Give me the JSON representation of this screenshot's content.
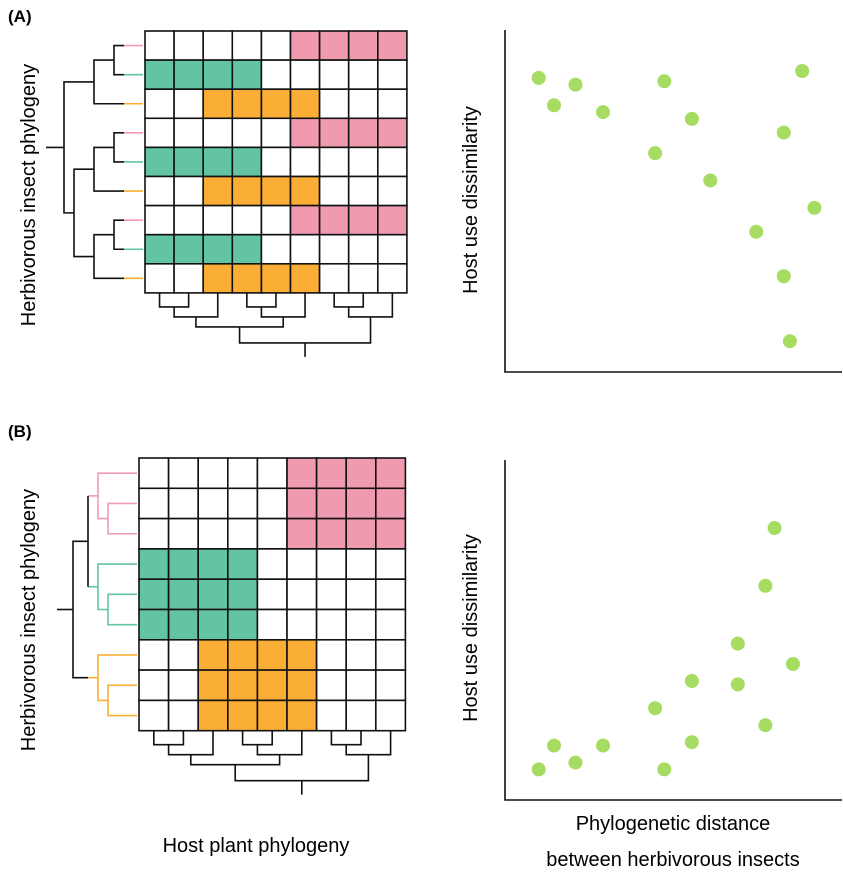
{
  "colors": {
    "pink": "#f09ab0",
    "green": "#62c4a5",
    "orange": "#fbae36",
    "point": "#a6dc61",
    "line": "#111111",
    "grid_empty": "#ffffff"
  },
  "panels": [
    {
      "label": "(A)",
      "insect_axis_label": "Herbivorous insect phylogeny",
      "row_colors": [
        "pink",
        "green",
        "orange",
        "pink",
        "green",
        "orange",
        "pink",
        "green",
        "orange"
      ],
      "matrix": [
        [
          0,
          0,
          0,
          0,
          0,
          1,
          1,
          1,
          1
        ],
        [
          2,
          2,
          2,
          2,
          0,
          0,
          0,
          0,
          0
        ],
        [
          0,
          0,
          3,
          3,
          3,
          3,
          0,
          0,
          0
        ],
        [
          0,
          0,
          0,
          0,
          0,
          1,
          1,
          1,
          1
        ],
        [
          2,
          2,
          2,
          2,
          0,
          0,
          0,
          0,
          0
        ],
        [
          0,
          0,
          3,
          3,
          3,
          3,
          0,
          0,
          0
        ],
        [
          0,
          0,
          0,
          0,
          0,
          1,
          1,
          1,
          1
        ],
        [
          2,
          2,
          2,
          2,
          0,
          0,
          0,
          0,
          0
        ],
        [
          0,
          0,
          3,
          3,
          3,
          3,
          0,
          0,
          0
        ]
      ],
      "scatter": {
        "y_label": "Host use dissimilarity",
        "x_label_line1": "",
        "x_label_line2": "",
        "points": [
          {
            "x": 1.1,
            "y": 8.6
          },
          {
            "x": 1.6,
            "y": 7.8
          },
          {
            "x": 2.3,
            "y": 8.4
          },
          {
            "x": 3.2,
            "y": 7.6
          },
          {
            "x": 4.9,
            "y": 6.4
          },
          {
            "x": 5.2,
            "y": 8.5
          },
          {
            "x": 6.1,
            "y": 7.4
          },
          {
            "x": 6.7,
            "y": 5.6
          },
          {
            "x": 8.2,
            "y": 4.1
          },
          {
            "x": 9.1,
            "y": 7.0
          },
          {
            "x": 9.1,
            "y": 2.8
          },
          {
            "x": 9.7,
            "y": 8.8
          },
          {
            "x": 10.1,
            "y": 4.8
          },
          {
            "x": 9.3,
            "y": 0.9
          }
        ]
      }
    },
    {
      "label": "(B)",
      "insect_axis_label": "Herbivorous insect phylogeny",
      "plant_axis_label": "Host plant phylogeny",
      "row_colors": [
        "pink",
        "pink",
        "pink",
        "green",
        "green",
        "green",
        "orange",
        "orange",
        "orange"
      ],
      "matrix": [
        [
          0,
          0,
          0,
          0,
          0,
          1,
          1,
          1,
          1
        ],
        [
          0,
          0,
          0,
          0,
          0,
          1,
          1,
          1,
          1
        ],
        [
          0,
          0,
          0,
          0,
          0,
          1,
          1,
          1,
          1
        ],
        [
          2,
          2,
          2,
          2,
          0,
          0,
          0,
          0,
          0
        ],
        [
          2,
          2,
          2,
          2,
          0,
          0,
          0,
          0,
          0
        ],
        [
          2,
          2,
          2,
          2,
          0,
          0,
          0,
          0,
          0
        ],
        [
          0,
          0,
          3,
          3,
          3,
          3,
          0,
          0,
          0
        ],
        [
          0,
          0,
          3,
          3,
          3,
          3,
          0,
          0,
          0
        ],
        [
          0,
          0,
          3,
          3,
          3,
          3,
          0,
          0,
          0
        ]
      ],
      "scatter": {
        "y_label": "Host use dissimilarity",
        "x_label_line1": "Phylogenetic distance",
        "x_label_line2": "between herbivorous insects",
        "points": [
          {
            "x": 1.1,
            "y": 0.9
          },
          {
            "x": 1.6,
            "y": 1.6
          },
          {
            "x": 2.3,
            "y": 1.1
          },
          {
            "x": 3.2,
            "y": 1.6
          },
          {
            "x": 4.9,
            "y": 2.7
          },
          {
            "x": 5.2,
            "y": 0.9
          },
          {
            "x": 6.1,
            "y": 1.7
          },
          {
            "x": 6.1,
            "y": 3.5
          },
          {
            "x": 7.6,
            "y": 3.4
          },
          {
            "x": 7.6,
            "y": 4.6
          },
          {
            "x": 8.5,
            "y": 2.2
          },
          {
            "x": 8.5,
            "y": 6.3
          },
          {
            "x": 9.4,
            "y": 4.0
          },
          {
            "x": 8.8,
            "y": 8.0
          }
        ]
      }
    }
  ]
}
